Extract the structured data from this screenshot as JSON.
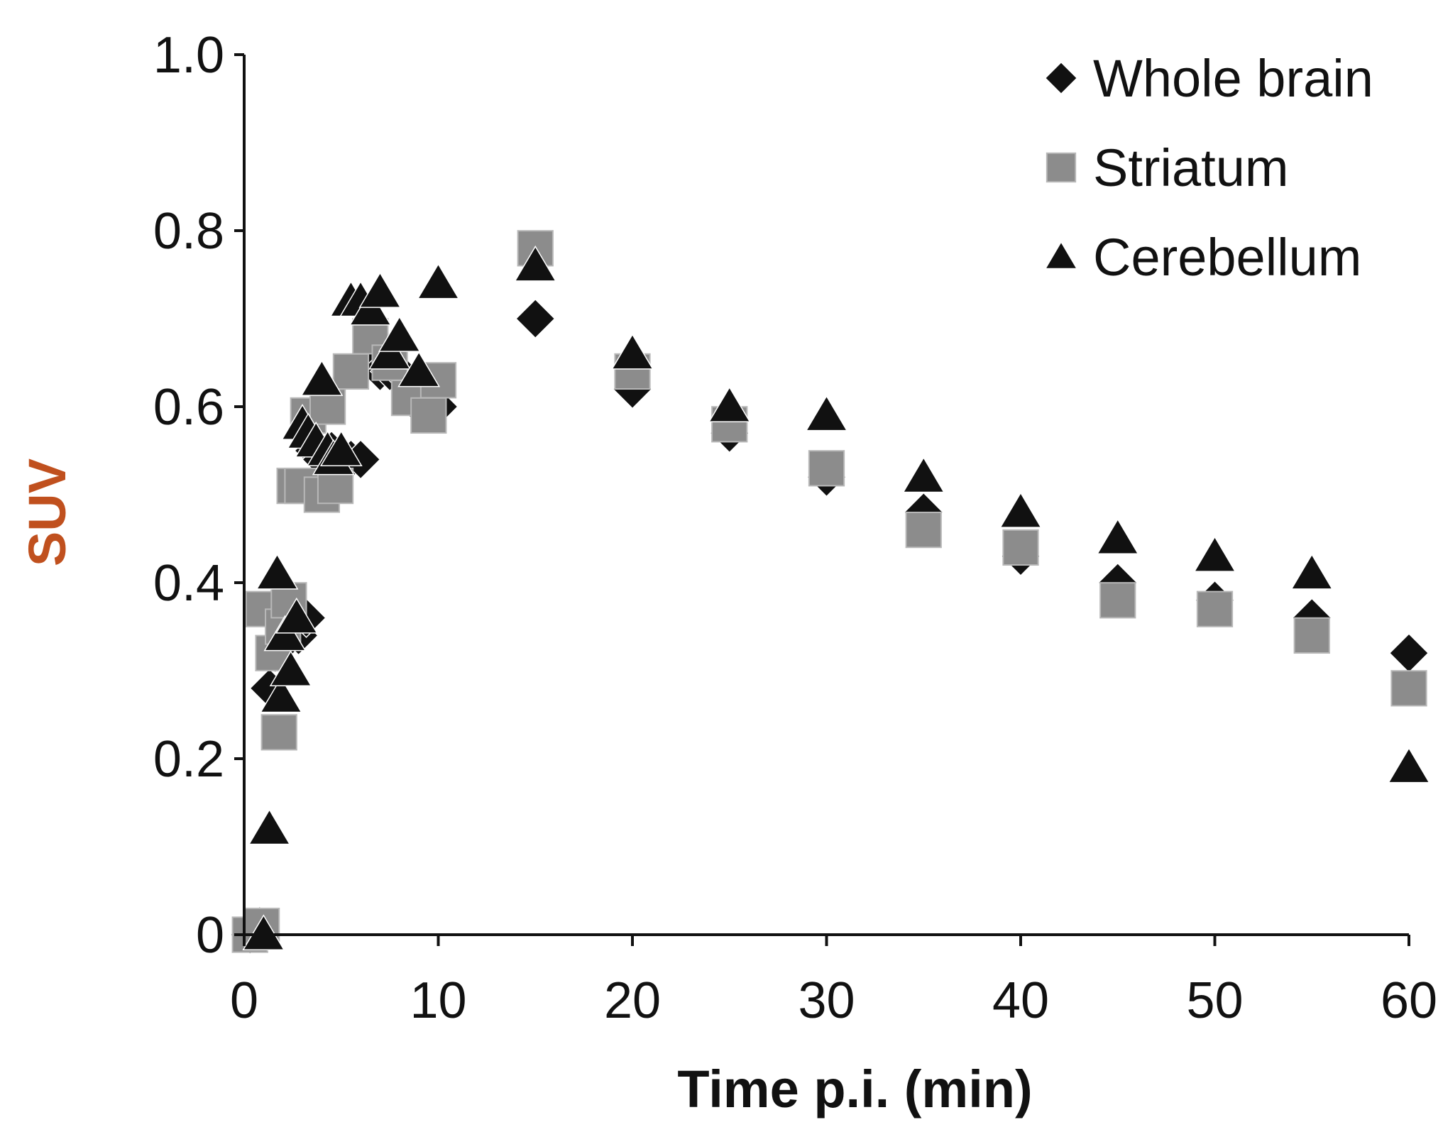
{
  "chart_data": {
    "type": "scatter",
    "title": "",
    "xlabel": "Time p.i. (min)",
    "ylabel": "SUV",
    "xlim": [
      0,
      60
    ],
    "ylim": [
      0,
      1.0
    ],
    "x_ticks": [
      0,
      10,
      20,
      30,
      40,
      50,
      60
    ],
    "y_ticks": [
      {
        "value": 0,
        "label": "0"
      },
      {
        "value": 0.2,
        "label": "0.2"
      },
      {
        "value": 0.4,
        "label": "0.4"
      },
      {
        "value": 0.6,
        "label": "0.6"
      },
      {
        "value": 0.8,
        "label": "0.8"
      },
      {
        "value": 1.0,
        "label": "1.0"
      }
    ],
    "grid": false,
    "legend_position": "top-right",
    "colors": {
      "axis": "#111111",
      "ylabel": "#c0501e",
      "xlabel": "#111111"
    },
    "series": [
      {
        "name": "Whole brain",
        "marker": "diamond",
        "color": "#111111",
        "x": [
          0.3,
          0.8,
          1.3,
          1.6,
          2.0,
          2.4,
          2.8,
          3.2,
          3.6,
          4.0,
          4.5,
          5.0,
          5.5,
          6.0,
          6.5,
          7.0,
          7.5,
          8.0,
          9.0,
          10.0,
          15.0,
          20.0,
          25.0,
          30.0,
          35.0,
          40.0,
          45.0,
          50.0,
          55.0,
          60.0
        ],
        "y": [
          0.0,
          0.01,
          0.28,
          0.32,
          0.33,
          0.35,
          0.34,
          0.36,
          0.55,
          0.54,
          0.55,
          0.53,
          0.54,
          0.54,
          0.65,
          0.64,
          0.64,
          0.64,
          0.6,
          0.6,
          0.7,
          0.62,
          0.57,
          0.52,
          0.48,
          0.43,
          0.4,
          0.38,
          0.36,
          0.32
        ]
      },
      {
        "name": "Striatum",
        "marker": "square",
        "color": "#8c8c8c",
        "x": [
          0.3,
          0.9,
          1.0,
          1.5,
          1.8,
          2.0,
          2.3,
          2.6,
          3.0,
          3.3,
          4.0,
          4.3,
          4.7,
          5.5,
          6.5,
          7.5,
          8.5,
          9.5,
          10.0,
          15.0,
          20.0,
          25.0,
          30.0,
          35.0,
          40.0,
          45.0,
          50.0,
          55.0,
          60.0
        ],
        "y": [
          0.0,
          0.01,
          0.37,
          0.32,
          0.23,
          0.35,
          0.38,
          0.51,
          0.51,
          0.59,
          0.5,
          0.6,
          0.51,
          0.64,
          0.68,
          0.65,
          0.61,
          0.59,
          0.63,
          0.78,
          0.64,
          0.58,
          0.53,
          0.46,
          0.44,
          0.38,
          0.37,
          0.34,
          0.28
        ]
      },
      {
        "name": "Cerebellum",
        "marker": "triangle",
        "color": "#111111",
        "x": [
          1.0,
          1.3,
          1.7,
          1.9,
          2.1,
          2.4,
          2.7,
          3.0,
          3.3,
          3.7,
          4.0,
          4.3,
          4.6,
          5.0,
          5.5,
          6.0,
          6.5,
          7.0,
          7.5,
          8.0,
          9.0,
          10.0,
          15.0,
          20.0,
          25.0,
          30.0,
          35.0,
          40.0,
          45.0,
          50.0,
          55.0,
          60.0
        ],
        "y": [
          0.0,
          0.12,
          0.41,
          0.27,
          0.34,
          0.3,
          0.36,
          0.58,
          0.57,
          0.56,
          0.63,
          0.55,
          0.54,
          0.55,
          0.72,
          0.72,
          0.71,
          0.73,
          0.66,
          0.68,
          0.64,
          0.74,
          0.76,
          0.66,
          0.6,
          0.59,
          0.52,
          0.48,
          0.45,
          0.43,
          0.41,
          0.19
        ]
      }
    ]
  }
}
